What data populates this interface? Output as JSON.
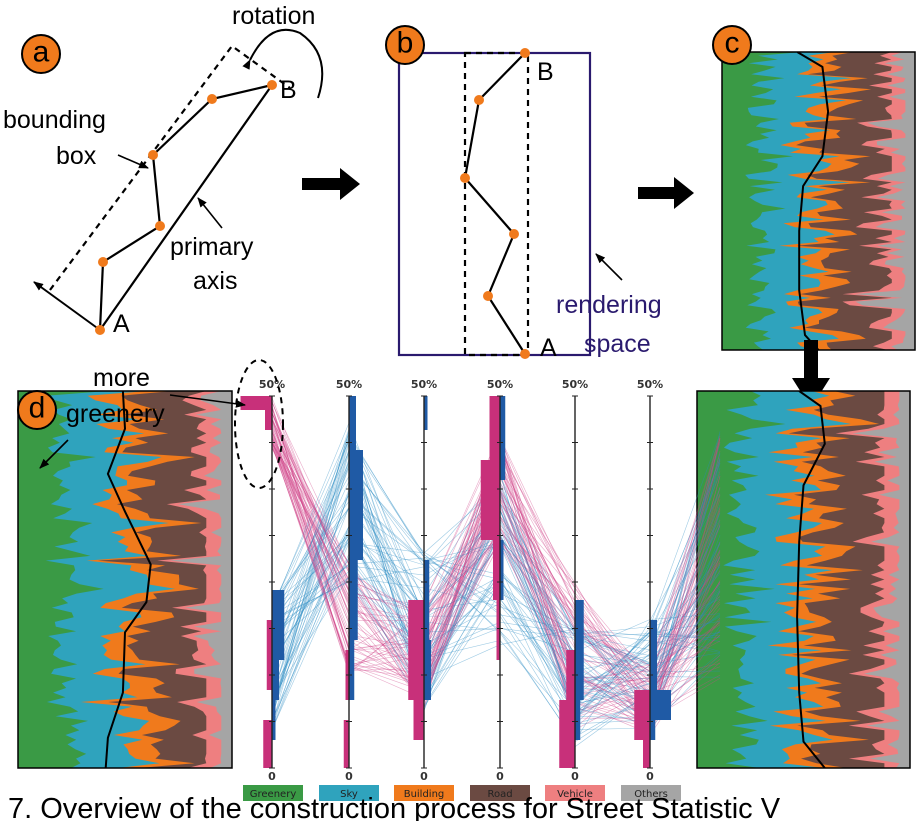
{
  "badges": {
    "a": "a",
    "b": "b",
    "c": "c",
    "d": "d"
  },
  "panel_a": {
    "rotation_label": "rotation",
    "bounding_label_1": "bounding",
    "bounding_label_2": "box",
    "primary_label_1": "primary",
    "primary_label_2": "axis",
    "point_a": "A",
    "point_b": "B"
  },
  "panel_b": {
    "point_a": "A",
    "point_b": "B",
    "rendering_label_1": "rendering",
    "rendering_label_2": "space"
  },
  "panel_d": {
    "more_label": "more",
    "greenery_label": "greenery"
  },
  "axes": [
    {
      "top_tick": "50%",
      "bottom_tick": "0"
    },
    {
      "top_tick": "50%",
      "bottom_tick": "0"
    },
    {
      "top_tick": "50%",
      "bottom_tick": "0"
    },
    {
      "top_tick": "50%",
      "bottom_tick": "0"
    },
    {
      "top_tick": "50%",
      "bottom_tick": "0"
    },
    {
      "top_tick": "50%",
      "bottom_tick": "0"
    }
  ],
  "legend": [
    {
      "label": "Greenery",
      "color": "#3a9a45"
    },
    {
      "label": "Sky",
      "color": "#2fa3bd"
    },
    {
      "label": "Building",
      "color": "#f07a1c"
    },
    {
      "label": "Road",
      "color": "#6b4a42"
    },
    {
      "label": "Vehicle",
      "color": "#ee7f80"
    },
    {
      "label": "Others",
      "color": "#a5a5a5"
    }
  ],
  "colors": {
    "accent_orange": "#f07a1c",
    "pink_histogram": "#c8307a",
    "blue_histogram": "#1f5aa5",
    "rendering_space": "#2a1a6e"
  },
  "caption": "7. Overview of the construction process for Street Statistic V"
}
